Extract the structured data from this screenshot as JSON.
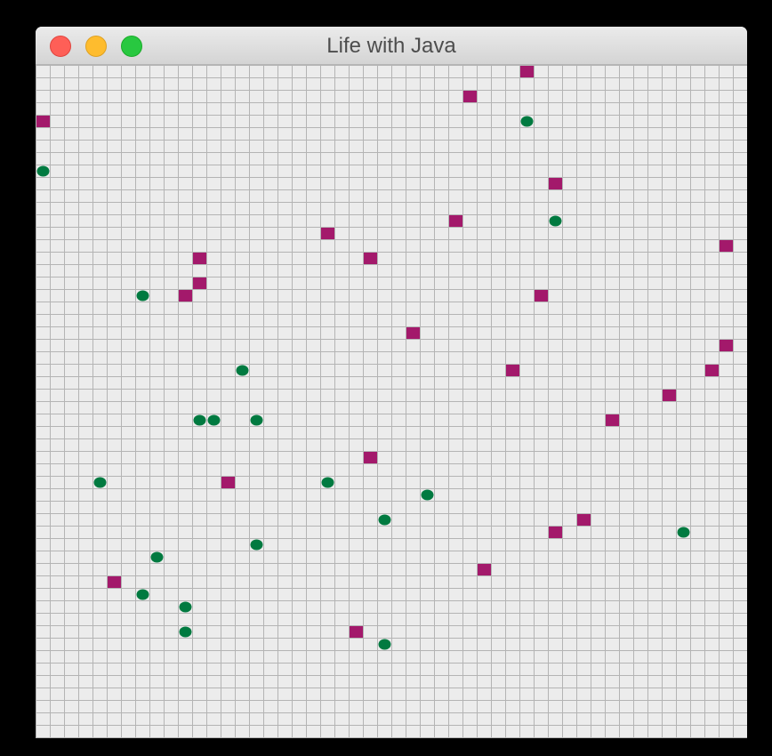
{
  "window": {
    "title": "Life with Java"
  },
  "grid": {
    "columns": 50,
    "rows": 54,
    "colors": {
      "background": "#ececec",
      "grid_line": "#b4b4b4",
      "species_a": "#a3196b",
      "species_b": "#007a40"
    }
  },
  "cells": {
    "species_a": [
      [
        34,
        0
      ],
      [
        30,
        2
      ],
      [
        0,
        4
      ],
      [
        36,
        9
      ],
      [
        29,
        12
      ],
      [
        20,
        13
      ],
      [
        48,
        14
      ],
      [
        11,
        15
      ],
      [
        23,
        15
      ],
      [
        11,
        17
      ],
      [
        10,
        18
      ],
      [
        35,
        18
      ],
      [
        26,
        21
      ],
      [
        48,
        22
      ],
      [
        33,
        24
      ],
      [
        47,
        24
      ],
      [
        44,
        26
      ],
      [
        40,
        28
      ],
      [
        23,
        31
      ],
      [
        13,
        33
      ],
      [
        38,
        36
      ],
      [
        36,
        37
      ],
      [
        31,
        40
      ],
      [
        5,
        41
      ],
      [
        22,
        45
      ]
    ],
    "species_b": [
      [
        34,
        4
      ],
      [
        0,
        8
      ],
      [
        36,
        12
      ],
      [
        7,
        18
      ],
      [
        14,
        24
      ],
      [
        11,
        28
      ],
      [
        12,
        28
      ],
      [
        15,
        28
      ],
      [
        4,
        33
      ],
      [
        20,
        33
      ],
      [
        27,
        34
      ],
      [
        24,
        36
      ],
      [
        45,
        37
      ],
      [
        15,
        38
      ],
      [
        8,
        39
      ],
      [
        7,
        42
      ],
      [
        10,
        43
      ],
      [
        10,
        45
      ],
      [
        24,
        46
      ]
    ]
  }
}
